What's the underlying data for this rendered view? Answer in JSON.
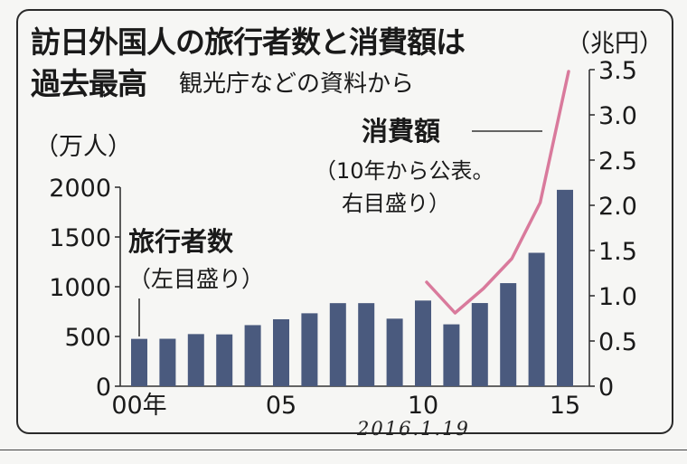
{
  "title_lines": [
    "訪日外国人の旅行者数と消費額は",
    "過去最高"
  ],
  "source": "観光庁などの資料から",
  "date_stamp": "2016.1.19",
  "chart_data": {
    "type": "bar+line",
    "x": [
      2000,
      2001,
      2002,
      2003,
      2004,
      2005,
      2006,
      2007,
      2008,
      2009,
      2010,
      2011,
      2012,
      2013,
      2014,
      2015
    ],
    "x_tick_labels": [
      {
        "x": 2000,
        "label": "00年"
      },
      {
        "x": 2005,
        "label": "05"
      },
      {
        "x": 2010,
        "label": "10"
      },
      {
        "x": 2015,
        "label": "15"
      }
    ],
    "left_axis": {
      "unit": "（万人）",
      "range": [
        0,
        2000
      ],
      "ticks": [
        0,
        500,
        1000,
        1500,
        2000
      ]
    },
    "right_axis": {
      "unit": "（兆円）",
      "range": [
        0,
        3.5
      ],
      "ticks": [
        0,
        0.5,
        1.0,
        1.5,
        2.0,
        2.5,
        3.0,
        3.5
      ],
      "tick_labels": [
        "0",
        "0.5",
        "1.0",
        "1.5",
        "2.0",
        "2.5",
        "3.0",
        "3.5"
      ]
    },
    "series": [
      {
        "name": "旅行者数",
        "sublabel": "（左目盛り）",
        "type": "bar",
        "axis": "left",
        "x": [
          2000,
          2001,
          2002,
          2003,
          2004,
          2005,
          2006,
          2007,
          2008,
          2009,
          2010,
          2011,
          2012,
          2013,
          2014,
          2015
        ],
        "values": [
          476,
          477,
          524,
          521,
          614,
          673,
          733,
          835,
          835,
          679,
          861,
          622,
          836,
          1036,
          1341,
          1974
        ],
        "color": "#4a5a7e"
      },
      {
        "name": "消費額",
        "sublabel_lines": [
          "（10年から公表。",
          "右目盛り）"
        ],
        "type": "line",
        "axis": "right",
        "x": [
          2010,
          2011,
          2012,
          2013,
          2014,
          2015
        ],
        "values": [
          1.15,
          0.81,
          1.08,
          1.41,
          2.03,
          3.48
        ],
        "color": "#d97a9c"
      }
    ],
    "grid": false
  }
}
